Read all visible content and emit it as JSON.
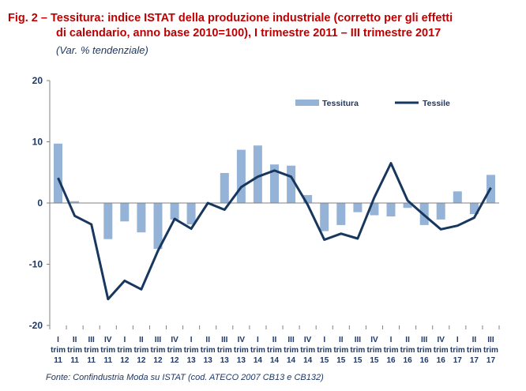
{
  "header": {
    "title_line1": "Fig. 2 – Tessitura: indice ISTAT della produzione industriale (corretto per gli effetti",
    "title_line2": "di calendario, anno base 2010=100), I trimestre 2011 – III trimestre 2017",
    "subtitle": "(Var. % tendenziale)"
  },
  "footer": {
    "source": "Fonte: Confindustria Moda  su ISTAT (cod. ATECO 2007 CB13 e CB132)"
  },
  "colors": {
    "bar": "#95b3d7",
    "line": "#17375e",
    "axis_text": "#1f3864"
  },
  "chart_data": {
    "type": "bar",
    "title": "Fig. 2 – Tessitura: indice ISTAT della produzione industriale (corretto per gli effetti di calendario, anno base 2010=100), I trimestre 2011 – III trimestre 2017",
    "subtitle": "(Var. % tendenziale)",
    "ylim": [
      -20,
      20
    ],
    "yticks": [
      20,
      10,
      0,
      -10,
      -20
    ],
    "grid": false,
    "legend_position": "top-right",
    "categories": [
      {
        "q": "I",
        "t": "trim",
        "y": "11"
      },
      {
        "q": "II",
        "t": "trim",
        "y": "11"
      },
      {
        "q": "III",
        "t": "trim",
        "y": "11"
      },
      {
        "q": "IV",
        "t": "trim",
        "y": "11"
      },
      {
        "q": "I",
        "t": "trim",
        "y": "12"
      },
      {
        "q": "II",
        "t": "trim",
        "y": "12"
      },
      {
        "q": "III",
        "t": "trim",
        "y": "12"
      },
      {
        "q": "IV",
        "t": "trim",
        "y": "12"
      },
      {
        "q": "I",
        "t": "trim",
        "y": "13"
      },
      {
        "q": "II",
        "t": "trim",
        "y": "13"
      },
      {
        "q": "III",
        "t": "trim",
        "y": "13"
      },
      {
        "q": "IV",
        "t": "trim",
        "y": "13"
      },
      {
        "q": "I",
        "t": "trim",
        "y": "14"
      },
      {
        "q": "II",
        "t": "trim",
        "y": "14"
      },
      {
        "q": "III",
        "t": "trim",
        "y": "14"
      },
      {
        "q": "IV",
        "t": "trim",
        "y": "14"
      },
      {
        "q": "I",
        "t": "trim",
        "y": "15"
      },
      {
        "q": "II",
        "t": "trim",
        "y": "15"
      },
      {
        "q": "III",
        "t": "trim",
        "y": "15"
      },
      {
        "q": "IV",
        "t": "trim",
        "y": "15"
      },
      {
        "q": "I",
        "t": "trim",
        "y": "16"
      },
      {
        "q": "II",
        "t": "trim",
        "y": "16"
      },
      {
        "q": "III",
        "t": "trim",
        "y": "16"
      },
      {
        "q": "IV",
        "t": "trim",
        "y": "16"
      },
      {
        "q": "I",
        "t": "trim",
        "y": "17"
      },
      {
        "q": "II",
        "t": "trim",
        "y": "17"
      },
      {
        "q": "III",
        "t": "trim",
        "y": "17"
      }
    ],
    "series": [
      {
        "name": "Tessitura",
        "type": "bar",
        "values": [
          9.7,
          0.3,
          0.0,
          -5.9,
          -3.0,
          -4.8,
          -7.5,
          -2.7,
          -3.5,
          0.0,
          4.9,
          8.7,
          9.4,
          6.3,
          6.1,
          1.3,
          -4.6,
          -3.6,
          -1.5,
          -2.0,
          -2.2,
          -0.8,
          -3.6,
          -2.7,
          1.9,
          -1.8,
          4.6
        ]
      },
      {
        "name": "Tessile",
        "type": "line",
        "values": [
          4.1,
          -2.1,
          -3.5,
          -15.7,
          -12.7,
          -14.1,
          -7.8,
          -2.6,
          -4.2,
          0.0,
          -1.1,
          2.6,
          4.3,
          5.3,
          4.3,
          -0.3,
          -6.0,
          -5.0,
          -5.8,
          0.9,
          6.5,
          0.4,
          -2.0,
          -4.3,
          -3.7,
          -2.4,
          2.5
        ]
      }
    ]
  }
}
